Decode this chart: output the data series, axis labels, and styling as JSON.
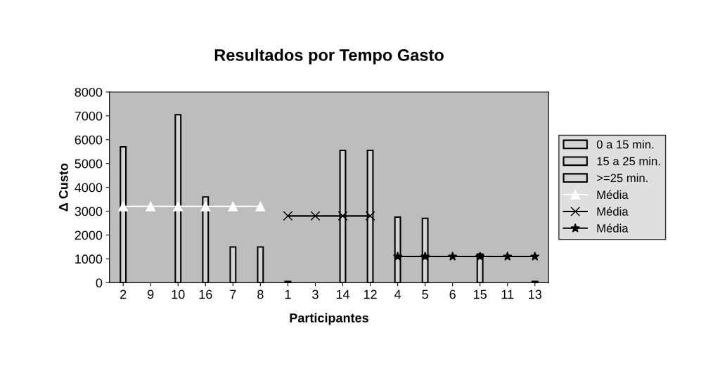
{
  "chart_data": {
    "type": "bar",
    "title": "Resultados por Tempo Gasto",
    "xlabel": "Participantes",
    "ylabel": "Δ Custo",
    "categories": [
      "2",
      "9",
      "10",
      "16",
      "7",
      "8",
      "1",
      "3",
      "14",
      "12",
      "4",
      "5",
      "6",
      "15",
      "11",
      "13"
    ],
    "series": [
      {
        "name": "0 a 15 min.",
        "color": "#d4d4d4",
        "values": [
          5700,
          null,
          7050,
          3600,
          1500,
          1500,
          null,
          null,
          null,
          null,
          null,
          null,
          null,
          null,
          null,
          null
        ]
      },
      {
        "name": "15 a 25 min.",
        "color": "#d4d4d4",
        "values": [
          null,
          null,
          null,
          null,
          null,
          null,
          50,
          null,
          5550,
          5550,
          null,
          null,
          null,
          null,
          null,
          null
        ]
      },
      {
        "name": ">=25 min.",
        "color": "#d4d4d4",
        "values": [
          null,
          null,
          null,
          null,
          null,
          null,
          null,
          null,
          null,
          null,
          2750,
          2700,
          null,
          1200,
          null,
          50
        ]
      },
      {
        "name": "Média",
        "type": "line",
        "marker": "triangle",
        "color": "#ffffff",
        "values": [
          3200,
          3200,
          3200,
          3200,
          3200,
          3200,
          null,
          null,
          null,
          null,
          null,
          null,
          null,
          null,
          null,
          null
        ]
      },
      {
        "name": "Média",
        "type": "line",
        "marker": "cross",
        "color": "#000000",
        "values": [
          null,
          null,
          null,
          null,
          null,
          null,
          2800,
          2800,
          2800,
          2800,
          null,
          null,
          null,
          null,
          null,
          null
        ]
      },
      {
        "name": "Média",
        "type": "line",
        "marker": "star",
        "color": "#000000",
        "values": [
          null,
          null,
          null,
          null,
          null,
          null,
          null,
          null,
          null,
          null,
          1100,
          1100,
          1100,
          1100,
          1100,
          1100
        ]
      }
    ],
    "ylim": [
      0,
      8000
    ],
    "yticks": [
      0,
      1000,
      2000,
      3000,
      4000,
      5000,
      6000,
      7000,
      8000
    ],
    "grid": false,
    "legend": "right"
  }
}
